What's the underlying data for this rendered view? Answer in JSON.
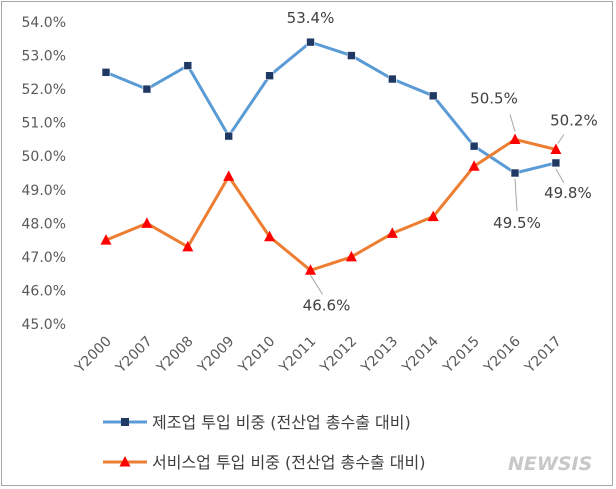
{
  "chart_data": {
    "type": "line",
    "title": "",
    "xlabel": "",
    "ylabel": "",
    "ylim": [
      45.0,
      54.0
    ],
    "ytick_step": 1.0,
    "ytick_suffix": "%",
    "grid": false,
    "legend_position": "bottom",
    "categories": [
      "Y2000",
      "Y2007",
      "Y2008",
      "Y2009",
      "Y2010",
      "Y2011",
      "Y2012",
      "Y2013",
      "Y2014",
      "Y2015",
      "Y2016",
      "Y2017"
    ],
    "series": [
      {
        "name": "제조업 투입 비중 (전산업 총수출 대비)",
        "color": "#5b9bd5",
        "marker": "square",
        "marker_color": "#1f3864",
        "values": [
          52.5,
          52.0,
          52.7,
          50.6,
          52.4,
          53.4,
          53.0,
          52.3,
          51.8,
          50.3,
          49.5,
          49.8
        ]
      },
      {
        "name": "서비스업 투입 비중 (전산업 총수출 대비)",
        "color": "#ed7d31",
        "marker": "triangle",
        "marker_color": "#ff0000",
        "values": [
          47.5,
          48.0,
          47.3,
          49.4,
          47.6,
          46.6,
          47.0,
          47.7,
          48.2,
          49.7,
          50.5,
          50.2
        ]
      }
    ],
    "annotations": [
      {
        "text": "53.4%",
        "series": 0,
        "index": 5
      },
      {
        "text": "49.5%",
        "series": 0,
        "index": 10
      },
      {
        "text": "49.8%",
        "series": 0,
        "index": 11
      },
      {
        "text": "46.6%",
        "series": 1,
        "index": 5
      },
      {
        "text": "50.5%",
        "series": 1,
        "index": 10
      },
      {
        "text": "50.2%",
        "series": 1,
        "index": 11
      }
    ]
  },
  "watermark": "NEWSIS"
}
